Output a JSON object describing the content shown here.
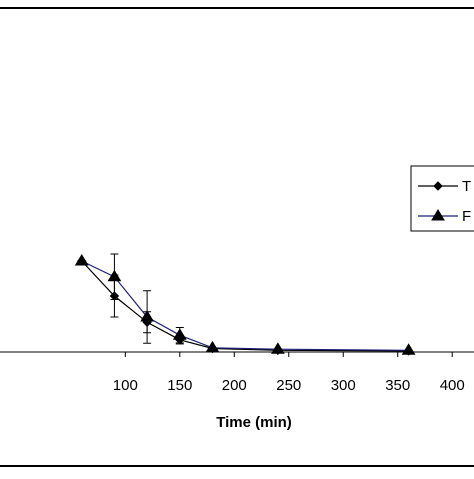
{
  "chart_data": {
    "type": "line",
    "title": "",
    "xlabel": "Time (min)",
    "ylabel": "",
    "xlim": [
      -15,
      420
    ],
    "ylim": [
      0,
      1
    ],
    "x_ticks": [
      100,
      150,
      200,
      250,
      300,
      350,
      400
    ],
    "x_tick_labels": [
      "100",
      "150",
      "200",
      "250",
      "300",
      "350",
      "400"
    ],
    "grid": false,
    "legend_position": "right",
    "series": [
      {
        "name": "T",
        "marker": "diamond",
        "color": "#000000",
        "x": [
          60,
          90,
          120,
          150,
          180,
          240,
          360
        ],
        "y": [
          0.26,
          0.16,
          0.085,
          0.035,
          0.01,
          0.005,
          0.003
        ],
        "err": [
          0,
          0.06,
          0.03,
          0.012,
          0,
          0,
          0
        ]
      },
      {
        "name": "F",
        "marker": "triangle",
        "color": "#1f1f7a",
        "x": [
          60,
          90,
          120,
          150,
          180,
          240,
          360
        ],
        "y": [
          0.26,
          0.215,
          0.1,
          0.048,
          0.012,
          0.008,
          0.005
        ],
        "err": [
          0,
          0.065,
          0.075,
          0.022,
          0,
          0,
          0
        ]
      }
    ],
    "legend": {
      "entries": [
        "T",
        "F"
      ]
    }
  }
}
